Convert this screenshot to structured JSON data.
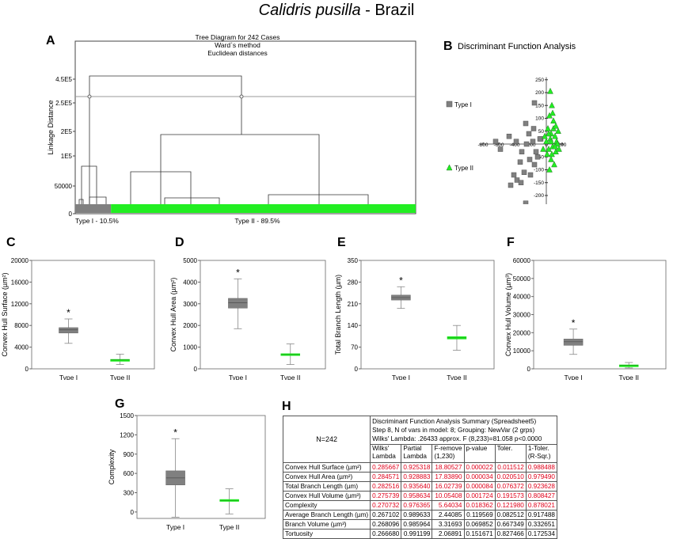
{
  "page": {
    "title_species": "Calidris pusilla",
    "title_region": " - Brazil"
  },
  "panels": {
    "A": "A",
    "B": "B",
    "C": "C",
    "D": "D",
    "E": "E",
    "F": "F",
    "G": "G",
    "H": "H"
  },
  "colors": {
    "type1": "#808080",
    "type2": "#22ee22",
    "significant": "#e0001a"
  },
  "chart_data": [
    {
      "panel": "A",
      "type": "dendrogram",
      "title_lines": [
        "Tree Diagram for 242 Cases",
        "Ward`s method",
        "Euclidean distances"
      ],
      "ylabel": "Linkage Distance",
      "y_ticks": [
        "4.5E5",
        "2.5E5",
        "2E5",
        "1E5",
        "50000",
        "0"
      ],
      "cut_value": "2.5E5",
      "groups": [
        {
          "label": "Type I - 10.5%",
          "share": 10.5
        },
        {
          "label": "Type II - 89.5%",
          "share": 89.5
        }
      ]
    },
    {
      "panel": "B",
      "type": "scatter",
      "title": "Discriminant Function Analysis",
      "legend": [
        "Type I",
        "Type II"
      ],
      "x_ticks": [
        -800,
        -600,
        -400,
        -200,
        0,
        200
      ],
      "y_ticks": [
        250,
        200,
        150,
        100,
        50,
        0,
        -50,
        -100,
        -150,
        -200,
        -250
      ],
      "xlim": [
        -850,
        230
      ],
      "ylim": [
        -260,
        260
      ],
      "type1_points": [
        [
          -640,
          10
        ],
        [
          -580,
          -20
        ],
        [
          -470,
          30
        ],
        [
          -380,
          10
        ],
        [
          -260,
          80
        ],
        [
          -220,
          40
        ],
        [
          -310,
          -30
        ],
        [
          -170,
          10
        ],
        [
          -160,
          60
        ],
        [
          -250,
          0
        ],
        [
          -210,
          -60
        ],
        [
          -130,
          -30
        ],
        [
          -70,
          20
        ],
        [
          -110,
          -50
        ],
        [
          -150,
          -80
        ],
        [
          -330,
          -70
        ],
        [
          -370,
          -140
        ],
        [
          -410,
          -120
        ],
        [
          -450,
          -160
        ],
        [
          -280,
          -110
        ],
        [
          -320,
          -150
        ],
        [
          -200,
          -120
        ],
        [
          -260,
          -230
        ],
        [
          -150,
          160
        ],
        [
          -80,
          20
        ]
      ],
      "type2_points": [
        [
          50,
          205
        ],
        [
          70,
          150
        ],
        [
          40,
          110
        ],
        [
          90,
          90
        ],
        [
          20,
          60
        ],
        [
          60,
          40
        ],
        [
          110,
          30
        ],
        [
          130,
          10
        ],
        [
          80,
          -10
        ],
        [
          30,
          -20
        ],
        [
          120,
          -30
        ],
        [
          60,
          -60
        ],
        [
          100,
          -80
        ],
        [
          140,
          0
        ],
        [
          0,
          10
        ],
        [
          -20,
          30
        ],
        [
          50,
          20
        ],
        [
          90,
          60
        ],
        [
          150,
          50
        ],
        [
          10,
          -40
        ],
        [
          80,
          120
        ],
        [
          40,
          -100
        ],
        [
          120,
          70
        ],
        [
          -40,
          -20
        ],
        [
          70,
          -40
        ],
        [
          110,
          -10
        ],
        [
          30,
          40
        ],
        [
          160,
          -20
        ],
        [
          60,
          10
        ]
      ]
    },
    {
      "panel": "C",
      "type": "box",
      "ylabel": "Convex Hull Surface (µm²)",
      "y_ticks": [
        0,
        4000,
        8000,
        12000,
        16000,
        20000
      ],
      "ylim": [
        0,
        20000
      ],
      "categories": [
        "Type I",
        "Type II"
      ],
      "boxes": [
        {
          "min": 4700,
          "q1": 6600,
          "median": 7200,
          "q3": 7600,
          "max": 9200,
          "star": "*"
        },
        {
          "min": 800,
          "q1": 1550,
          "median": 1650,
          "q3": 1750,
          "max": 2700,
          "star": ""
        }
      ]
    },
    {
      "panel": "D",
      "type": "box",
      "ylabel": "Convex Hull Area (µm²)",
      "y_ticks": [
        0,
        1000,
        2000,
        3000,
        4000,
        5000
      ],
      "ylim": [
        0,
        5000
      ],
      "categories": [
        "Type I",
        "Type II"
      ],
      "boxes": [
        {
          "min": 1850,
          "q1": 2800,
          "median": 3050,
          "q3": 3250,
          "max": 4150,
          "star": "*"
        },
        {
          "min": 200,
          "q1": 620,
          "median": 660,
          "q3": 700,
          "max": 1150,
          "star": ""
        }
      ]
    },
    {
      "panel": "E",
      "type": "box",
      "ylabel": "Total Branch Length (µm)",
      "y_ticks": [
        0,
        70,
        140,
        210,
        280,
        350
      ],
      "ylim": [
        0,
        350
      ],
      "categories": [
        "Type I",
        "Type II"
      ],
      "boxes": [
        {
          "min": 195,
          "q1": 222,
          "median": 230,
          "q3": 238,
          "max": 265,
          "star": "*"
        },
        {
          "min": 60,
          "q1": 96,
          "median": 100,
          "q3": 104,
          "max": 140,
          "star": ""
        }
      ]
    },
    {
      "panel": "F",
      "type": "box",
      "ylabel": "Convex Hull Volume (µm³)",
      "y_ticks": [
        0,
        10000,
        20000,
        30000,
        40000,
        50000,
        60000
      ],
      "ylim": [
        0,
        60000
      ],
      "categories": [
        "Type I",
        "Type II"
      ],
      "boxes": [
        {
          "min": 8000,
          "q1": 13000,
          "median": 15000,
          "q3": 16500,
          "max": 22000,
          "star": "*"
        },
        {
          "min": 500,
          "q1": 1800,
          "median": 2000,
          "q3": 2200,
          "max": 3500,
          "star": ""
        }
      ]
    },
    {
      "panel": "G",
      "type": "box",
      "ylabel": "Complexity",
      "y_ticks": [
        0,
        300,
        600,
        900,
        1200,
        1500
      ],
      "ylim": [
        -100,
        1500
      ],
      "categories": [
        "Type I",
        "Type II"
      ],
      "boxes": [
        {
          "min": -80,
          "q1": 420,
          "median": 530,
          "q3": 640,
          "max": 1140,
          "star": "*"
        },
        {
          "min": -30,
          "q1": 165,
          "median": 180,
          "q3": 195,
          "max": 360,
          "star": ""
        }
      ]
    }
  ],
  "summary_table": {
    "n_label": "N=242",
    "title_lines": [
      "Discriminant Function Analysis Summary (Spreadsheet5)",
      "Step 8, N of vars in model: 8; Grouping: NewVar (2 grps)",
      "Wilks' Lambda: .26433 approx. F (8,233)=81.058 p<0.0000"
    ],
    "headers": [
      [
        "Wilks'",
        "Lambda"
      ],
      [
        "Partial",
        "Lambda"
      ],
      [
        "F-remove",
        "(1,230)"
      ],
      [
        "p-value",
        ""
      ],
      [
        "Toler.",
        ""
      ],
      [
        "1-Toler.",
        "(R-Sqr.)"
      ]
    ],
    "rows": [
      {
        "name": "Convex Hull Surface (µm²)",
        "significant": true,
        "values": [
          "0.285667",
          "0.925318",
          "18.80527",
          "0.000022",
          "0.011512",
          "0.988488"
        ]
      },
      {
        "name": "Convex Hull Area (µm²)",
        "significant": true,
        "values": [
          "0.284571",
          "0.928883",
          "17.83890",
          "0.000034",
          "0.020510",
          "0.979490"
        ]
      },
      {
        "name": "Total Branch Length (µm)",
        "significant": true,
        "values": [
          "0.282516",
          "0.935640",
          "16.02739",
          "0.000084",
          "0.076372",
          "0.923628"
        ]
      },
      {
        "name": "Convex Hull Volume (µm³)",
        "significant": true,
        "values": [
          "0.275739",
          "0.958634",
          "10.05408",
          "0.001724",
          "0.191573",
          "0.808427"
        ]
      },
      {
        "name": "Complexity",
        "significant": true,
        "values": [
          "0.270732",
          "0.976365",
          "5.64034",
          "0.018362",
          "0.121980",
          "0.878021"
        ]
      },
      {
        "name": "Average Branch Length (µm)",
        "significant": false,
        "values": [
          "0.267102",
          "0.989633",
          "2.44085",
          "0.119569",
          "0.082512",
          "0.917488"
        ]
      },
      {
        "name": "Branch Volume (µm³)",
        "significant": false,
        "values": [
          "0.268096",
          "0.985964",
          "3.31693",
          "0.069852",
          "0.667349",
          "0.332651"
        ]
      },
      {
        "name": "Tortuosity",
        "significant": false,
        "values": [
          "0.266680",
          "0.991199",
          "2.06891",
          "0.151671",
          "0.827466",
          "0.172534"
        ]
      }
    ]
  }
}
